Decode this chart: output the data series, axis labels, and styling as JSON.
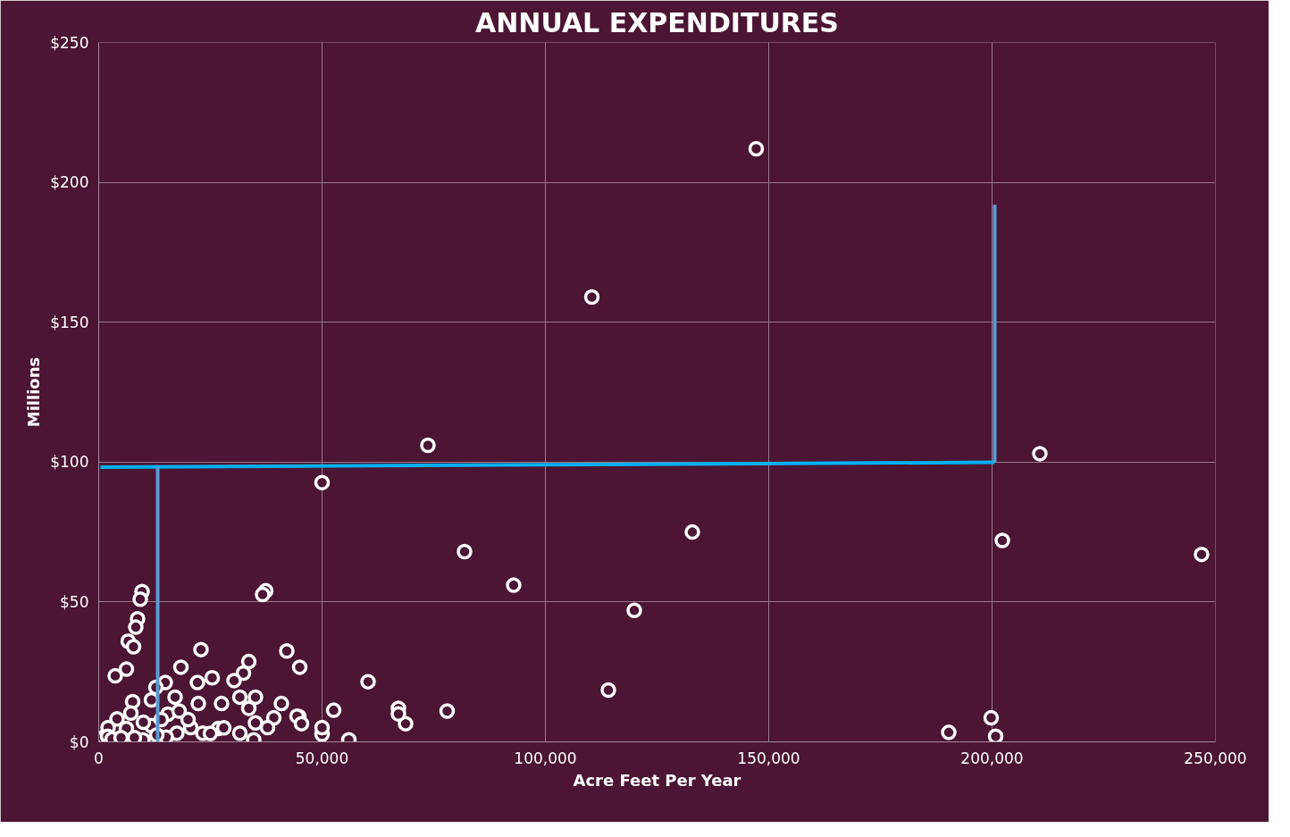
{
  "chart_data": {
    "type": "scatter",
    "title": "ANNUAL EXPENDITURES",
    "xlabel": "Acre Feet Per Year",
    "ylabel": "Millions",
    "xlim": [
      0,
      250000
    ],
    "ylim": [
      0,
      250
    ],
    "xticks": [
      0,
      {
        "value": 50000,
        "label": "50,000"
      },
      {
        "value": 100000,
        "label": "100,000"
      },
      {
        "value": 150000,
        "label": "150,000"
      },
      {
        "value": 200000,
        "label": "200,000"
      },
      {
        "value": 250000,
        "label": "250,000"
      }
    ],
    "yticks": [
      {
        "value": 0,
        "label": "$0"
      },
      {
        "value": 50,
        "label": "$50"
      },
      {
        "value": 100,
        "label": "$100"
      },
      {
        "value": 150,
        "label": "$150"
      },
      {
        "value": 200,
        "label": "$200"
      },
      {
        "value": 250,
        "label": "$250"
      }
    ],
    "grid": true,
    "series": [
      {
        "marker": "circle",
        "color": "#ffffff",
        "x": [
          147200,
          110400,
          73700,
          50000,
          210700,
          132900,
          202300,
          81900,
          246900,
          92900,
          119900,
          114100,
          78000,
          190300,
          199800,
          200800,
          56000,
          68700,
          67100,
          67100,
          60300,
          52600,
          50000,
          45000,
          42100,
          37400,
          36700,
          44800,
          9700,
          9300,
          8700,
          8300,
          6600,
          7800,
          6200,
          3700,
          22900,
          18400,
          33600,
          32400,
          30300,
          25400,
          22100,
          14900,
          12800,
          31600,
          35100,
          27500,
          22300,
          17100,
          11800,
          7600,
          4100,
          7200,
          15500,
          33600,
          40900,
          44400,
          39200,
          35100,
          37800,
          45400,
          50000,
          31600,
          26800,
          23300,
          17500,
          34700,
          9900,
          2100,
          6200,
          11800,
          20600,
          15100,
          1000,
          2000,
          3000,
          5000,
          8000,
          13000,
          14000,
          10000,
          25000,
          28000,
          20000,
          18000
        ],
        "values": [
          212,
          159,
          106,
          92.7,
          103,
          75,
          72,
          68,
          67,
          56,
          47,
          18.5,
          11,
          3.4,
          8.6,
          2,
          0.7,
          6.5,
          12,
          10,
          21.5,
          11.3,
          2.7,
          26.7,
          32.5,
          54,
          52.7,
          9,
          53.7,
          51,
          44,
          41,
          36,
          34,
          26,
          23.6,
          33,
          26.7,
          28.7,
          24.6,
          21.9,
          22.9,
          21.2,
          21.2,
          19.5,
          16,
          16,
          13.7,
          13.7,
          16,
          15,
          14.4,
          8.2,
          10.3,
          9.9,
          12,
          13.7,
          9.2,
          8.6,
          6.8,
          5.1,
          6.5,
          5.1,
          3.1,
          4.8,
          3.1,
          3.1,
          0.7,
          0.7,
          5.1,
          4.8,
          5.8,
          5.1,
          1.7,
          1.5,
          2,
          1,
          1.5,
          1.5,
          2.5,
          8,
          7,
          3,
          5,
          8,
          11
        ]
      },
      {
        "type": "line",
        "color": "#00b0f0",
        "x": [
          400,
          200600
        ],
        "values": [
          98.2,
          99.9
        ]
      },
      {
        "type": "line",
        "color": "#5b9bd5",
        "x": [
          200600,
          200600
        ],
        "values": [
          99.9,
          192
        ]
      },
      {
        "type": "line",
        "color": "#5b9bd5",
        "x": [
          13200,
          13200
        ],
        "values": [
          98.2,
          0
        ]
      }
    ]
  }
}
